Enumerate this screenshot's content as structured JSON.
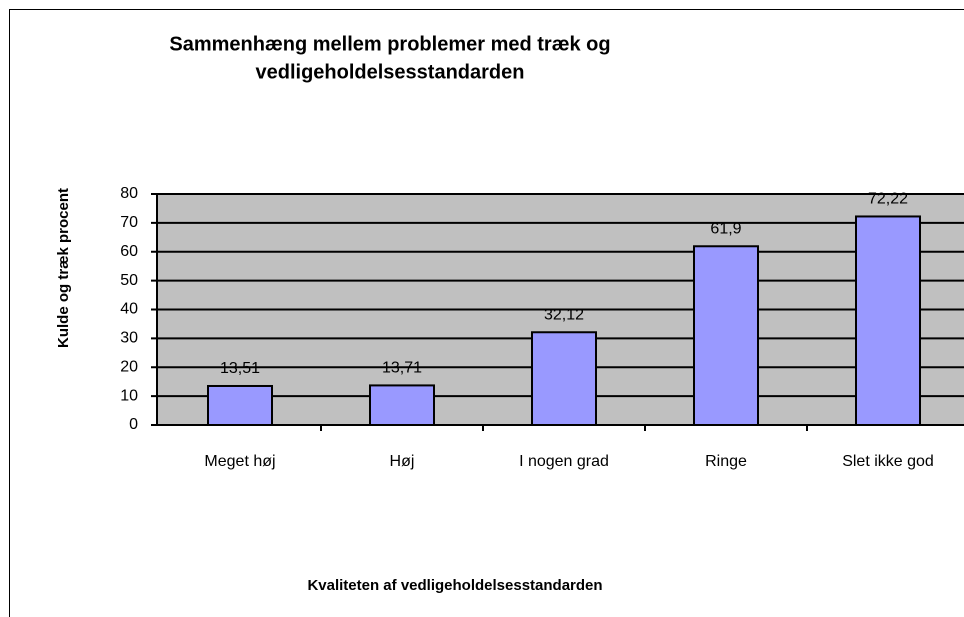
{
  "chart_data": {
    "type": "bar",
    "title": [
      "Sammenhæng mellem problemer med træk og",
      "vedligeholdelsesstandarden"
    ],
    "y_label": "Kulde og træk procent",
    "x_label": "Kvaliteten af vedligeholdelsesstandarden",
    "categories": [
      "Meget høj",
      "Høj",
      "I nogen grad",
      "Ringe",
      "Slet ikke god"
    ],
    "values": [
      13.51,
      13.71,
      32.12,
      61.9,
      72.22
    ],
    "value_labels": [
      "13,51",
      "13,71",
      "32,12",
      "61,9",
      "72,22"
    ],
    "color": "#9999ff",
    "ylim": [
      0,
      80
    ],
    "yticks": [
      0,
      10,
      20,
      30,
      40,
      50,
      60,
      70,
      80
    ],
    "grid": true
  }
}
